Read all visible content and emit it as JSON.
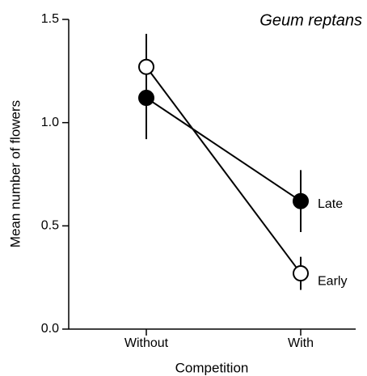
{
  "chart_data": {
    "type": "line",
    "title": "Geum reptans",
    "x_label": "Competition",
    "y_label": "Mean number of flowers",
    "categories": [
      "Without",
      "With"
    ],
    "series": [
      {
        "name": "Late",
        "color": "#000000",
        "values": [
          1.12,
          0.62
        ],
        "errors": [
          0.2,
          0.15
        ]
      },
      {
        "name": "Early",
        "color": "#ffffff",
        "values": [
          1.27,
          0.27
        ],
        "errors": [
          0.16,
          0.08
        ]
      }
    ],
    "ylim": [
      0,
      1.5
    ],
    "yticks": [
      {
        "value": 0,
        "label": "0.0"
      },
      0.5,
      {
        "value": 1,
        "label": "1.0"
      },
      {
        "value": 1.5,
        "label": "1.5"
      }
    ]
  }
}
